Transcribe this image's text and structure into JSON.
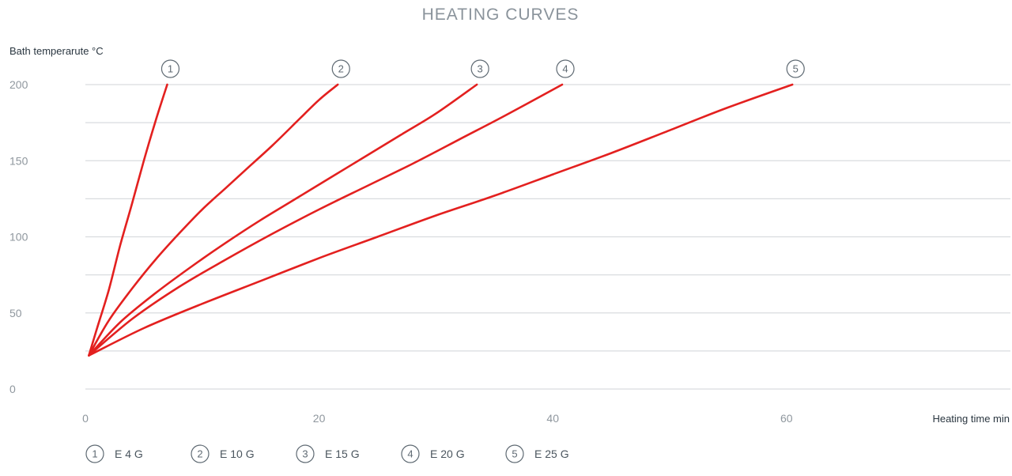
{
  "chart_data": {
    "type": "line",
    "title": "HEATING CURVES",
    "ylabel": "Bath temperarute °C",
    "xlabel": "Heating time min",
    "xlim": [
      0,
      80
    ],
    "ylim": [
      0,
      200
    ],
    "x_ticks": [
      "0",
      "20",
      "40",
      "60"
    ],
    "x_tick_values": [
      0,
      20,
      40,
      60
    ],
    "y_ticks": [
      "0",
      "50",
      "100",
      "150",
      "200"
    ],
    "y_tick_values": [
      0,
      50,
      100,
      150,
      200
    ],
    "y_gridlines": [
      0,
      25,
      50,
      75,
      100,
      125,
      150,
      175,
      200
    ],
    "grid": true,
    "line_color": "#e3201f",
    "legend_position": "bottom",
    "series": [
      {
        "marker": "1",
        "name": "E 4 G",
        "x": [
          0.3,
          1,
          2,
          3,
          4,
          5,
          6,
          7
        ],
        "y": [
          22,
          40,
          65,
          95,
          122,
          150,
          176,
          200
        ]
      },
      {
        "marker": "2",
        "name": "E 10 G",
        "x": [
          0.3,
          2,
          4,
          6,
          8,
          10,
          12,
          14,
          16,
          18,
          20,
          21.6
        ],
        "y": [
          22,
          45,
          66,
          85,
          102,
          118,
          132,
          146,
          160,
          175,
          190,
          200
        ]
      },
      {
        "marker": "3",
        "name": "E 15 G",
        "x": [
          0.3,
          3,
          6,
          9,
          12,
          15,
          18,
          21,
          24,
          27,
          30,
          33.5
        ],
        "y": [
          22,
          44,
          63,
          80,
          96,
          111,
          125,
          139,
          153,
          167,
          181,
          200
        ]
      },
      {
        "marker": "4",
        "name": "E 20 G",
        "x": [
          0.3,
          4,
          8,
          12,
          16,
          20,
          24,
          28,
          32,
          36,
          40.8
        ],
        "y": [
          22,
          46,
          67,
          85,
          102,
          118,
          133,
          148,
          164,
          180,
          200
        ]
      },
      {
        "marker": "5",
        "name": "E 25 G",
        "x": [
          0.3,
          5,
          10,
          15,
          20,
          25,
          30,
          35,
          40,
          45,
          50,
          55,
          60.5
        ],
        "y": [
          22,
          40,
          56,
          71,
          86,
          100,
          114,
          127,
          141,
          155,
          170,
          185,
          200
        ]
      }
    ]
  }
}
